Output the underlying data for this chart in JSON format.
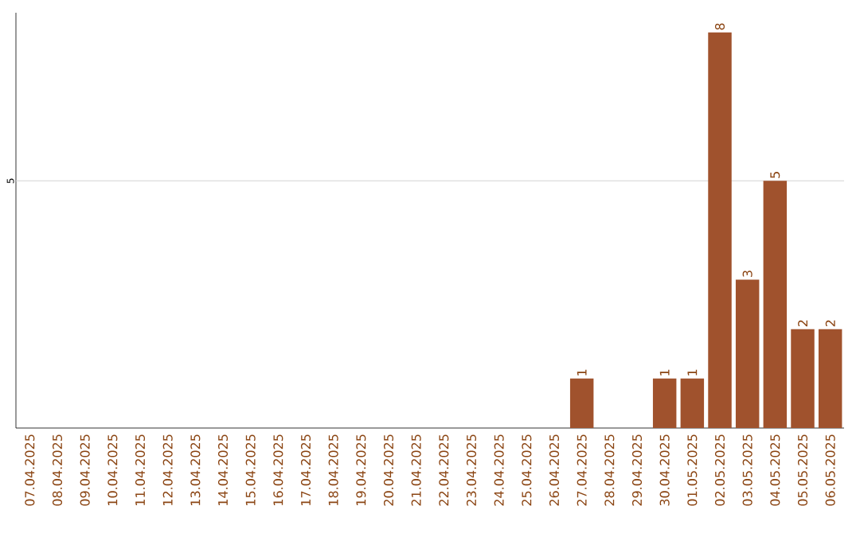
{
  "chart_data": {
    "type": "bar",
    "categories": [
      "07.04.2025",
      "08.04.2025",
      "09.04.2025",
      "10.04.2025",
      "11.04.2025",
      "12.04.2025",
      "13.04.2025",
      "14.04.2025",
      "15.04.2025",
      "16.04.2025",
      "17.04.2025",
      "18.04.2025",
      "19.04.2025",
      "20.04.2025",
      "21.04.2025",
      "22.04.2025",
      "23.04.2025",
      "24.04.2025",
      "25.04.2025",
      "26.04.2025",
      "27.04.2025",
      "28.04.2025",
      "29.04.2025",
      "30.04.2025",
      "01.05.2025",
      "02.05.2025",
      "03.05.2025",
      "04.05.2025",
      "05.05.2025",
      "06.05.2025"
    ],
    "values": [
      null,
      null,
      null,
      null,
      null,
      null,
      null,
      null,
      null,
      null,
      null,
      null,
      null,
      null,
      null,
      null,
      null,
      null,
      null,
      null,
      1,
      null,
      null,
      1,
      1,
      8,
      3,
      5,
      2,
      2
    ],
    "value_labels": [
      null,
      null,
      null,
      null,
      null,
      null,
      null,
      null,
      null,
      null,
      null,
      null,
      null,
      null,
      null,
      null,
      null,
      null,
      null,
      null,
      "1",
      null,
      null,
      "1",
      "1",
      "8",
      "3",
      "5",
      "2",
      "2"
    ],
    "color": "#a0522d",
    "ylim": [
      0,
      8.4
    ],
    "ref_lines": [
      {
        "axis": "y",
        "value": 5,
        "label": "5",
        "color": "#d3d3d3"
      }
    ]
  }
}
